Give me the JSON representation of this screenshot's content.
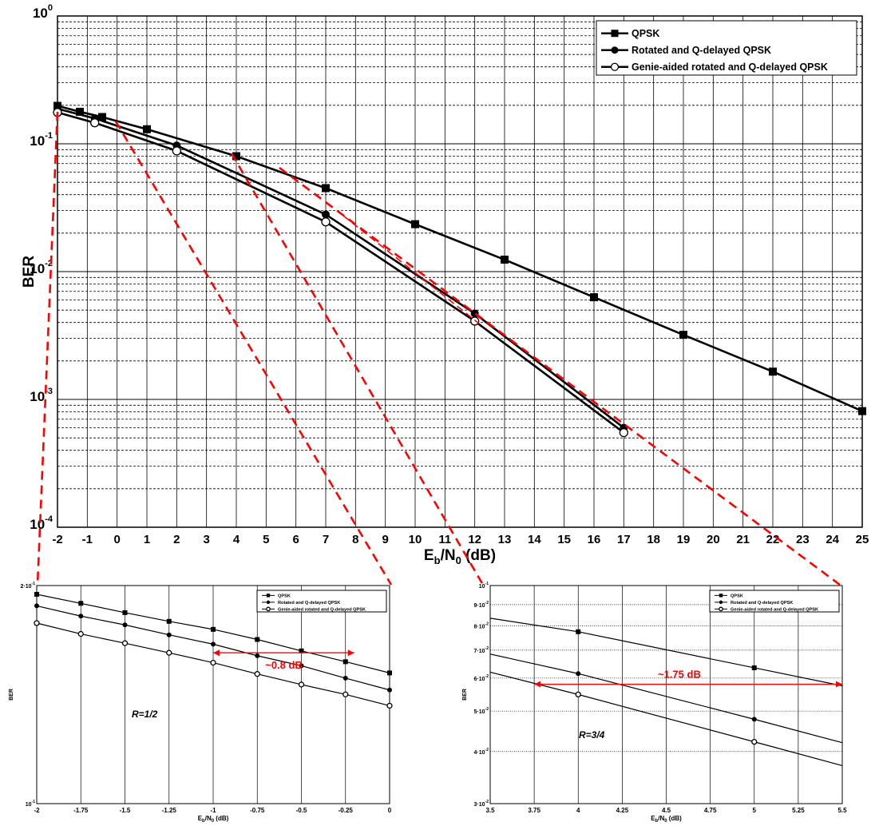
{
  "chart_data": [
    {
      "id": "main",
      "type": "line",
      "xlabel": "E",
      "xlabel_sub1": "b",
      "xlabel_mid": "/N",
      "xlabel_sub2": "0",
      "xlabel_tail": " (dB)",
      "ylabel": "BER",
      "xlim": [
        -2,
        25
      ],
      "ylim": [
        0.0001,
        1
      ],
      "yscale": "log",
      "grid": true,
      "legend_position": "top-right",
      "x_ticks": [
        "-2",
        "-1",
        "0",
        "1",
        "2",
        "3",
        "4",
        "5",
        "6",
        "7",
        "8",
        "9",
        "10",
        "11",
        "12",
        "13",
        "14",
        "15",
        "16",
        "17",
        "18",
        "19",
        "20",
        "21",
        "22",
        "23",
        "24",
        "25"
      ],
      "y_tick_bases": [
        "10",
        "10",
        "10",
        "10",
        "10"
      ],
      "y_tick_exps": [
        "0",
        "-1",
        "-2",
        "-3",
        "-4"
      ],
      "series": [
        {
          "name": "QPSK",
          "marker": "square",
          "x": [
            -2,
            -1.25,
            -0.5,
            1,
            4,
            7,
            10,
            13,
            16,
            19,
            22,
            25
          ],
          "y": [
            0.198,
            0.178,
            0.162,
            0.13,
            0.08,
            0.045,
            0.0235,
            0.0124,
            0.0063,
            0.0032,
            0.00165,
            0.00081
          ]
        },
        {
          "name": "Rotated and Q-delayed QPSK",
          "marker": "filled-circle",
          "x": [
            -2,
            -0.75,
            2,
            7,
            12,
            17
          ],
          "y": [
            0.188,
            0.158,
            0.097,
            0.028,
            0.0047,
            0.0006
          ]
        },
        {
          "name": "Genie-aided rotated and Q-delayed QPSK",
          "marker": "open-circle",
          "x": [
            -2,
            -0.75,
            2,
            7,
            12,
            17
          ],
          "y": [
            0.176,
            0.146,
            0.088,
            0.0245,
            0.0041,
            0.00055
          ]
        }
      ]
    },
    {
      "id": "zoom-r12",
      "type": "line",
      "xlabel": "E",
      "xlabel_sub1": "b",
      "xlabel_mid": "/N",
      "xlabel_sub2": "0",
      "xlabel_tail": " (dB)",
      "ylabel": "BER",
      "xlim": [
        -2,
        0
      ],
      "ylim": [
        0.1,
        0.2
      ],
      "yscale": "log",
      "x_ticks": [
        "-2",
        "-1.75",
        "-1.5",
        "-1.25",
        "-1",
        "-0.75",
        "-0.5",
        "-0.25",
        "0"
      ],
      "y_tick_top_base": "2·10",
      "y_tick_top_exp": "-1",
      "y_tick_bottom_base": "10",
      "y_tick_bottom_exp": "-1",
      "annotation_rate": "R=1/2",
      "annotation_gap": "~0.8 dB",
      "gap_x": [
        -1,
        -0.2
      ],
      "gap_y": 0.1615,
      "series": [
        {
          "name": "QPSK",
          "marker": "square",
          "x": [
            -2,
            -1.75,
            -1.5,
            -1.25,
            -1,
            -0.75,
            -0.5,
            -0.25,
            0
          ],
          "y": [
            0.1945,
            0.189,
            0.1835,
            0.1785,
            0.174,
            0.1685,
            0.1625,
            0.157,
            0.1515
          ]
        },
        {
          "name": "Rotated and Q-delayed QPSK",
          "marker": "filled-circle",
          "x": [
            -2,
            -1.75,
            -1.5,
            -1.25,
            -1,
            -0.75,
            -0.5,
            -0.25,
            0
          ],
          "y": [
            0.1875,
            0.1815,
            0.1765,
            0.171,
            0.166,
            0.16,
            0.155,
            0.149,
            0.1435
          ]
        },
        {
          "name": "Genie-aided rotated and Q-delayed QPSK",
          "marker": "open-circle",
          "x": [
            -2,
            -1.75,
            -1.5,
            -1.25,
            -1,
            -0.75,
            -0.5,
            -0.25,
            0
          ],
          "y": [
            0.1775,
            0.1715,
            0.1665,
            0.1615,
            0.1565,
            0.151,
            0.146,
            0.1415,
            0.1365
          ]
        }
      ]
    },
    {
      "id": "zoom-r34",
      "type": "line",
      "xlabel": "E",
      "xlabel_sub1": "b",
      "xlabel_mid": "/N",
      "xlabel_sub2": "0",
      "xlabel_tail": " (dB)",
      "ylabel": "BER",
      "xlim": [
        3.5,
        5.5
      ],
      "ylim": [
        0.03,
        0.1
      ],
      "yscale": "log",
      "x_ticks": [
        "3.5",
        "3.75",
        "4",
        "4.25",
        "4.5",
        "4.75",
        "5",
        "5.25",
        "5.5"
      ],
      "y_ticks": [
        {
          "v": 0.1,
          "base": "10",
          "exp": "-1"
        },
        {
          "v": 0.09,
          "base": "9·10",
          "exp": "-2"
        },
        {
          "v": 0.08,
          "base": "8·10",
          "exp": "-2"
        },
        {
          "v": 0.07,
          "base": "7·10",
          "exp": "-2"
        },
        {
          "v": 0.06,
          "base": "6·10",
          "exp": "-2"
        },
        {
          "v": 0.05,
          "base": "5·10",
          "exp": "-2"
        },
        {
          "v": 0.04,
          "base": "4·10",
          "exp": "-2"
        },
        {
          "v": 0.03,
          "base": "3·10",
          "exp": "-2"
        }
      ],
      "annotation_rate": "R=3/4",
      "annotation_gap": "~1.75 dB",
      "gap_x": [
        3.75,
        5.5
      ],
      "gap_y": 0.058,
      "series": [
        {
          "name": "QPSK",
          "marker": "square",
          "x": [
            3.5,
            4,
            5,
            5.5
          ],
          "y": [
            0.0835,
            0.0775,
            0.0635,
            0.0575
          ]
        },
        {
          "name": "Rotated and Q-delayed QPSK",
          "marker": "filled-circle",
          "x": [
            3.5,
            4,
            5,
            5.5
          ],
          "y": [
            0.0685,
            0.0615,
            0.0478,
            0.042
          ]
        },
        {
          "name": "Genie-aided rotated and Q-delayed QPSK",
          "marker": "open-circle",
          "x": [
            3.5,
            4,
            5,
            5.5
          ],
          "y": [
            0.062,
            0.0548,
            0.0422,
            0.037
          ]
        }
      ]
    }
  ],
  "colors": {
    "line": "#000000",
    "grid": "#000000",
    "annotation": "#ff0000",
    "background": "#ffffff"
  }
}
